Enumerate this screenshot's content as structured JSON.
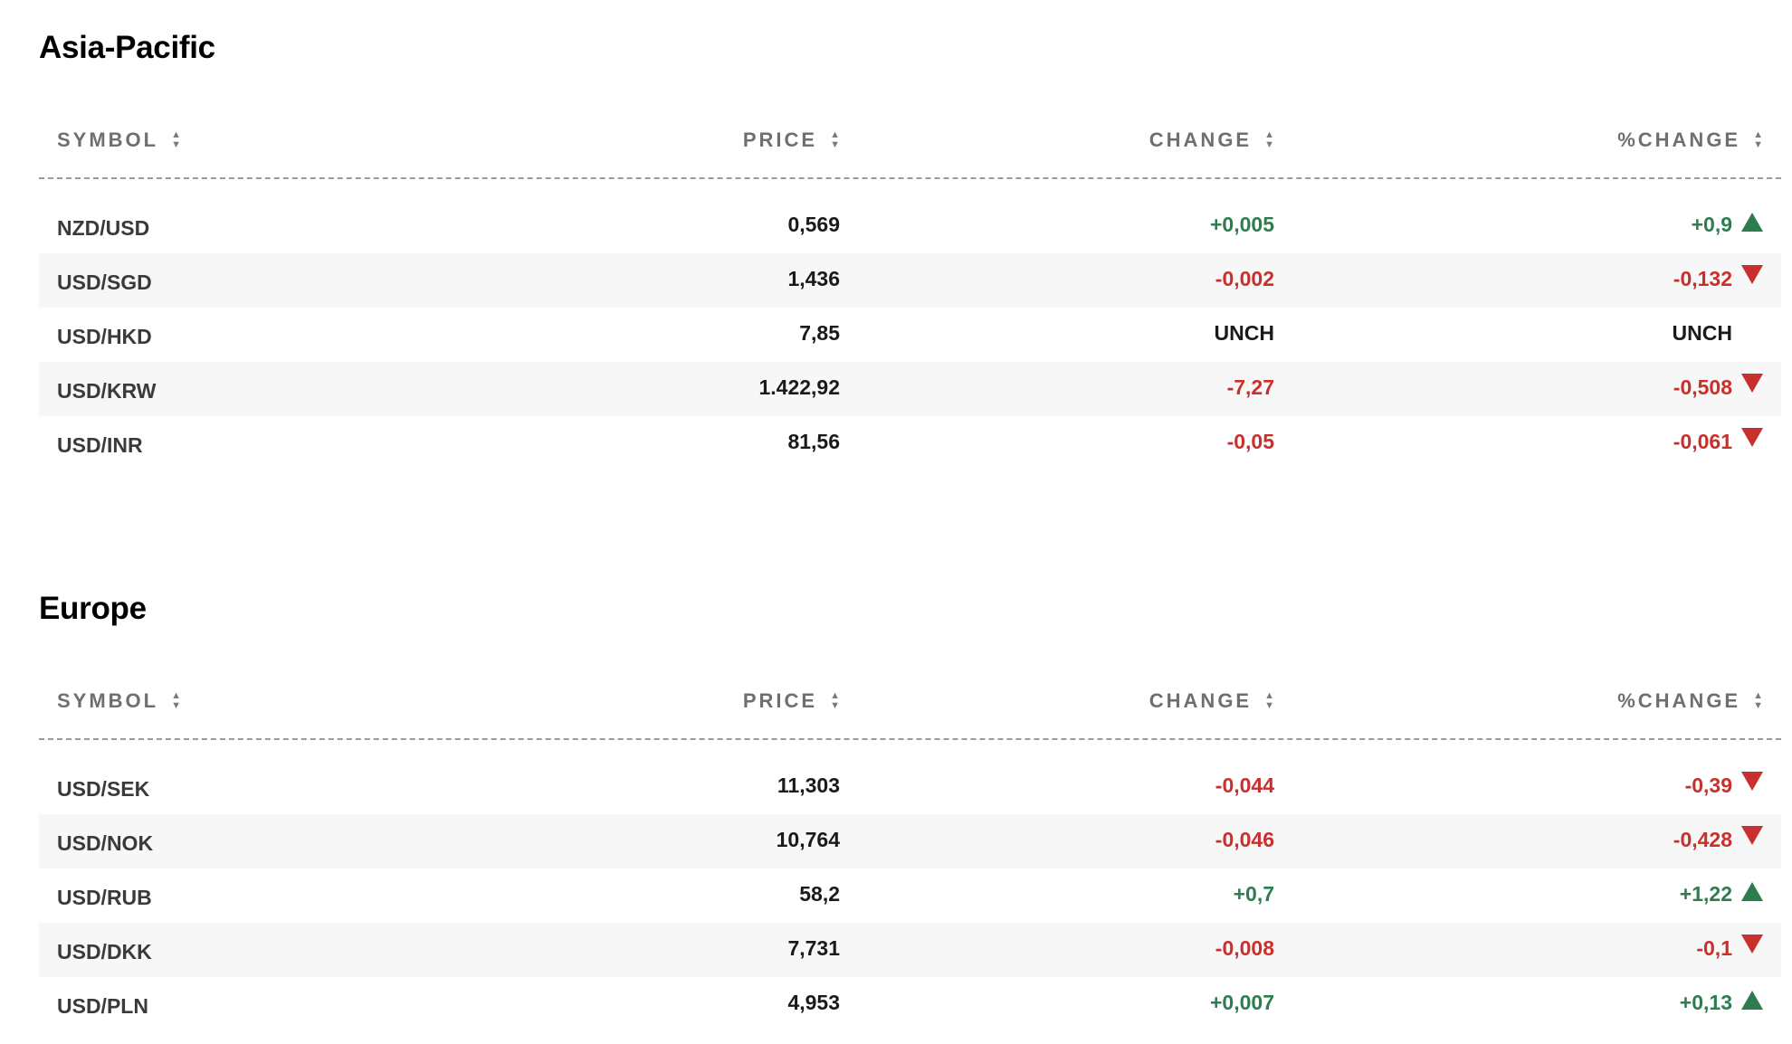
{
  "colors": {
    "positive": "#2e7d4f",
    "negative": "#c8302e",
    "neutral": "#1a1a1a"
  },
  "columns": {
    "symbol": "SYMBOL",
    "price": "PRICE",
    "change": "CHANGE",
    "pct_change": "%CHANGE"
  },
  "sections": [
    {
      "title": "Asia-Pacific",
      "rows": [
        {
          "symbol": "NZD/USD",
          "price": "0,569",
          "change": "+0,005",
          "pct": "+0,9",
          "dir": "up"
        },
        {
          "symbol": "USD/SGD",
          "price": "1,436",
          "change": "-0,002",
          "pct": "-0,132",
          "dir": "down"
        },
        {
          "symbol": "USD/HKD",
          "price": "7,85",
          "change": "UNCH",
          "pct": "UNCH",
          "dir": "flat"
        },
        {
          "symbol": "USD/KRW",
          "price": "1.422,92",
          "change": "-7,27",
          "pct": "-0,508",
          "dir": "down"
        },
        {
          "symbol": "USD/INR",
          "price": "81,56",
          "change": "-0,05",
          "pct": "-0,061",
          "dir": "down"
        }
      ]
    },
    {
      "title": "Europe",
      "rows": [
        {
          "symbol": "USD/SEK",
          "price": "11,303",
          "change": "-0,044",
          "pct": "-0,39",
          "dir": "down"
        },
        {
          "symbol": "USD/NOK",
          "price": "10,764",
          "change": "-0,046",
          "pct": "-0,428",
          "dir": "down"
        },
        {
          "symbol": "USD/RUB",
          "price": "58,2",
          "change": "+0,7",
          "pct": "+1,22",
          "dir": "up"
        },
        {
          "symbol": "USD/DKK",
          "price": "7,731",
          "change": "-0,008",
          "pct": "-0,1",
          "dir": "down"
        },
        {
          "symbol": "USD/PLN",
          "price": "4,953",
          "change": "+0,007",
          "pct": "+0,13",
          "dir": "up"
        }
      ]
    }
  ]
}
